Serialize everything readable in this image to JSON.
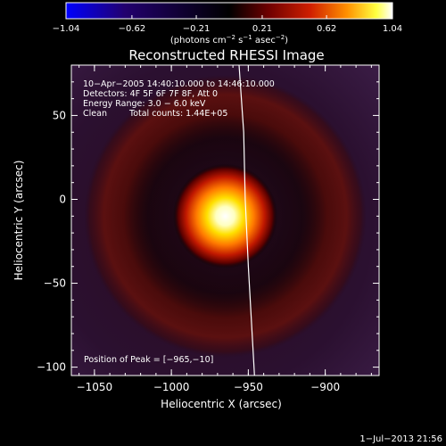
{
  "colors": {
    "background": "#000000",
    "colormap": [
      "#0000ff",
      "#22006e",
      "#000000",
      "#6e0000",
      "#d02000",
      "#ff9000",
      "#ffff40",
      "#ffffff"
    ],
    "limb": "#ffffff"
  },
  "colorbar": {
    "min": -1.04,
    "max": 1.04,
    "ticks": [
      "−1.04",
      "−0.62",
      "−0.21",
      "0.21",
      "0.62",
      "1.04"
    ],
    "tick_values": [
      -1.04,
      -0.62,
      -0.21,
      0.21,
      0.62,
      1.04
    ],
    "unit_label": "(photons cm",
    "unit_exp1": "−2",
    "unit_mid": " s",
    "unit_exp2": "−1",
    "unit_mid2": " asec",
    "unit_exp3": "−2",
    "unit_end": ")"
  },
  "chart_data": {
    "type": "heatmap",
    "title": "Reconstructed RHESSI Image",
    "xlabel": "Heliocentric X (arcsec)",
    "ylabel": "Heliocentric Y (arcsec)",
    "xlim": [
      -1065,
      -865
    ],
    "ylim": [
      -105,
      80
    ],
    "x_ticks": [
      -1050,
      -1000,
      -950,
      -900
    ],
    "x_tick_labels": [
      "−1050",
      "−1000",
      "−950",
      "−900"
    ],
    "y_ticks": [
      50,
      0,
      -50,
      -100
    ],
    "y_tick_labels": [
      "50",
      "0",
      "−50",
      "−100"
    ],
    "peak": {
      "x": -965,
      "y": -10,
      "value": 1.04
    },
    "ring": {
      "center_x": -965,
      "center_y": -10,
      "radius_arcsec": 68,
      "value": 0.3
    },
    "limb_curve": {
      "points": [
        [
          -956,
          80
        ],
        [
          -953,
          40
        ],
        [
          -952,
          0
        ],
        [
          -950,
          -40
        ],
        [
          -946,
          -105
        ]
      ]
    },
    "annotations": {
      "time_range": "10−Apr−2005 14:40:10.000 to 14:46:10.000",
      "detectors": "Detectors: 4F 5F 6F 7F 8F, Att 0",
      "energy": "Energy Range: 3.0 − 6.0 keV",
      "clean_label": "Clean",
      "total_counts": "Total counts: 1.44E+05",
      "peak_position": "Position of Peak = [−965,−10]"
    }
  },
  "footer": {
    "date": "1−Jul−2013 21:56"
  }
}
